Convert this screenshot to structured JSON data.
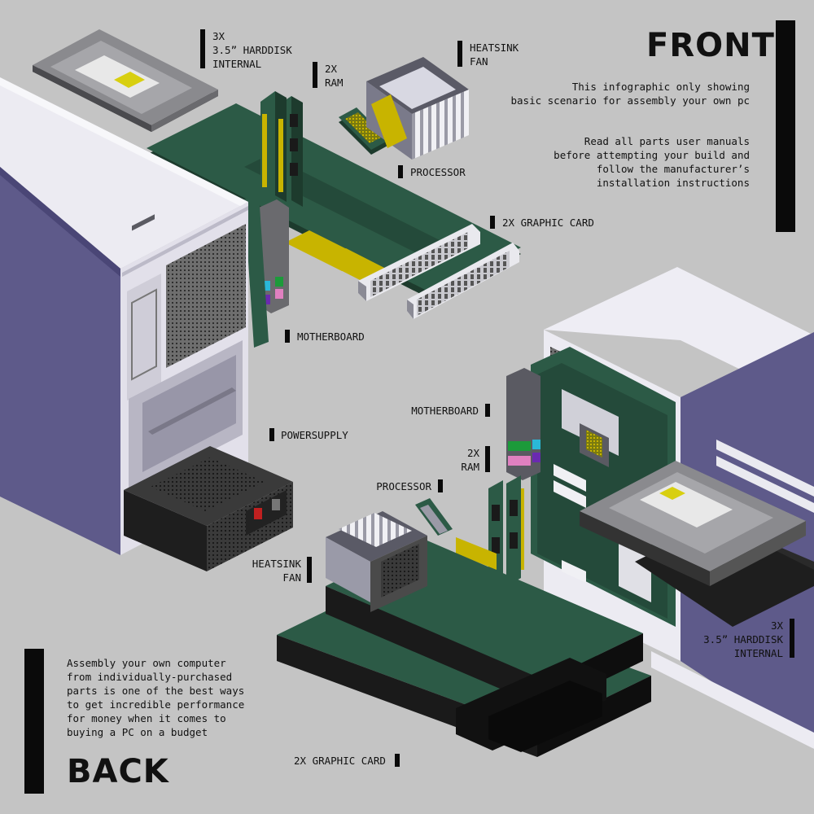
{
  "front": {
    "title": "FRONT",
    "note1": "This infographic only showing\nbasic scenario for assembly your own pc",
    "note2": "Read all parts user manuals\nbefore attempting your build and\nfollow the manufacturer’s\ninstallation instructions",
    "labels": {
      "harddisk": "3X\n3.5” HARDDISK\nINTERNAL",
      "ram": "2X\nRAM",
      "heatsink": "HEATSINK\nFAN",
      "processor": "PROCESSOR",
      "graphic": "2X GRAPHIC CARD",
      "motherboard": "MOTHERBOARD",
      "powersupply": "POWERSUPPLY"
    }
  },
  "back": {
    "title": "BACK",
    "note": "Assembly your own computer\nfrom individually-purchased\nparts is one of the best ways\nto get incredible performance\nfor money when it comes to\nbuying a PC on a budget",
    "labels": {
      "motherboard": "MOTHERBOARD",
      "ram": "2X\nRAM",
      "processor": "PROCESSOR",
      "heatsink": "HEATSINK\nFAN",
      "harddisk": "3X\n3.5” HARDDISK\nINTERNAL",
      "graphic": "2X GRAPHIC CARD"
    }
  },
  "colors": {
    "background": "#c4c4c4",
    "case_front": "#e6e4ee",
    "case_side": "#5e5a8a",
    "board_green": "#2c5a46",
    "gold": "#c8b400",
    "dark": "#1e1e1e"
  }
}
